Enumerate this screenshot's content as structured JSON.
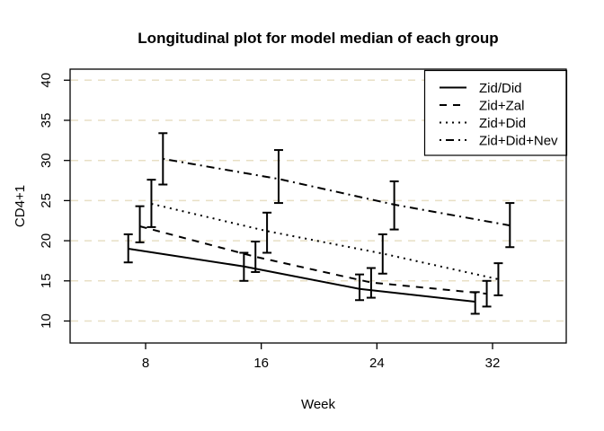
{
  "chart_data": {
    "type": "line",
    "title": "Longitudinal plot for model median of each group",
    "xlabel": "Week",
    "ylabel": "CD4+1",
    "x_ticks": [
      8,
      16,
      24,
      32
    ],
    "y_ticks": [
      10,
      15,
      20,
      25,
      30,
      35,
      40
    ],
    "xlim": [
      2.8,
      37.1
    ],
    "ylim": [
      7.3,
      41.4
    ],
    "grid": "horizontal-dashed",
    "legend_position": "topright",
    "weeks": [
      8,
      16,
      24,
      32
    ],
    "series": [
      {
        "name": "Zid/Did",
        "linetype": "solid",
        "x_offset": -1.2,
        "median": [
          19.0,
          16.8,
          14.0,
          12.4
        ],
        "lower": [
          17.3,
          15.0,
          12.6,
          10.9
        ],
        "upper": [
          20.8,
          18.5,
          15.8,
          13.6
        ]
      },
      {
        "name": "Zid+Zal",
        "linetype": "dashed",
        "x_offset": -0.4,
        "median": [
          21.8,
          18.0,
          14.8,
          13.4
        ],
        "lower": [
          19.8,
          16.1,
          12.9,
          11.8
        ],
        "upper": [
          24.3,
          19.9,
          16.6,
          15.0
        ]
      },
      {
        "name": "Zid+Did",
        "linetype": "dotted",
        "x_offset": 0.4,
        "median": [
          24.6,
          21.2,
          18.4,
          15.2
        ],
        "lower": [
          21.7,
          18.5,
          15.9,
          13.2
        ],
        "upper": [
          27.6,
          23.5,
          20.8,
          17.2
        ]
      },
      {
        "name": "Zid+Did+Nev",
        "linetype": "dotdash",
        "x_offset": 1.2,
        "median": [
          30.2,
          27.7,
          24.5,
          21.9
        ],
        "lower": [
          27.0,
          24.7,
          21.4,
          19.2
        ],
        "upper": [
          33.4,
          31.3,
          27.4,
          24.7
        ]
      }
    ],
    "colors": {
      "line": "#000000",
      "grid": "#e8dfc5",
      "background": "#ffffff",
      "text": "#000000"
    }
  }
}
